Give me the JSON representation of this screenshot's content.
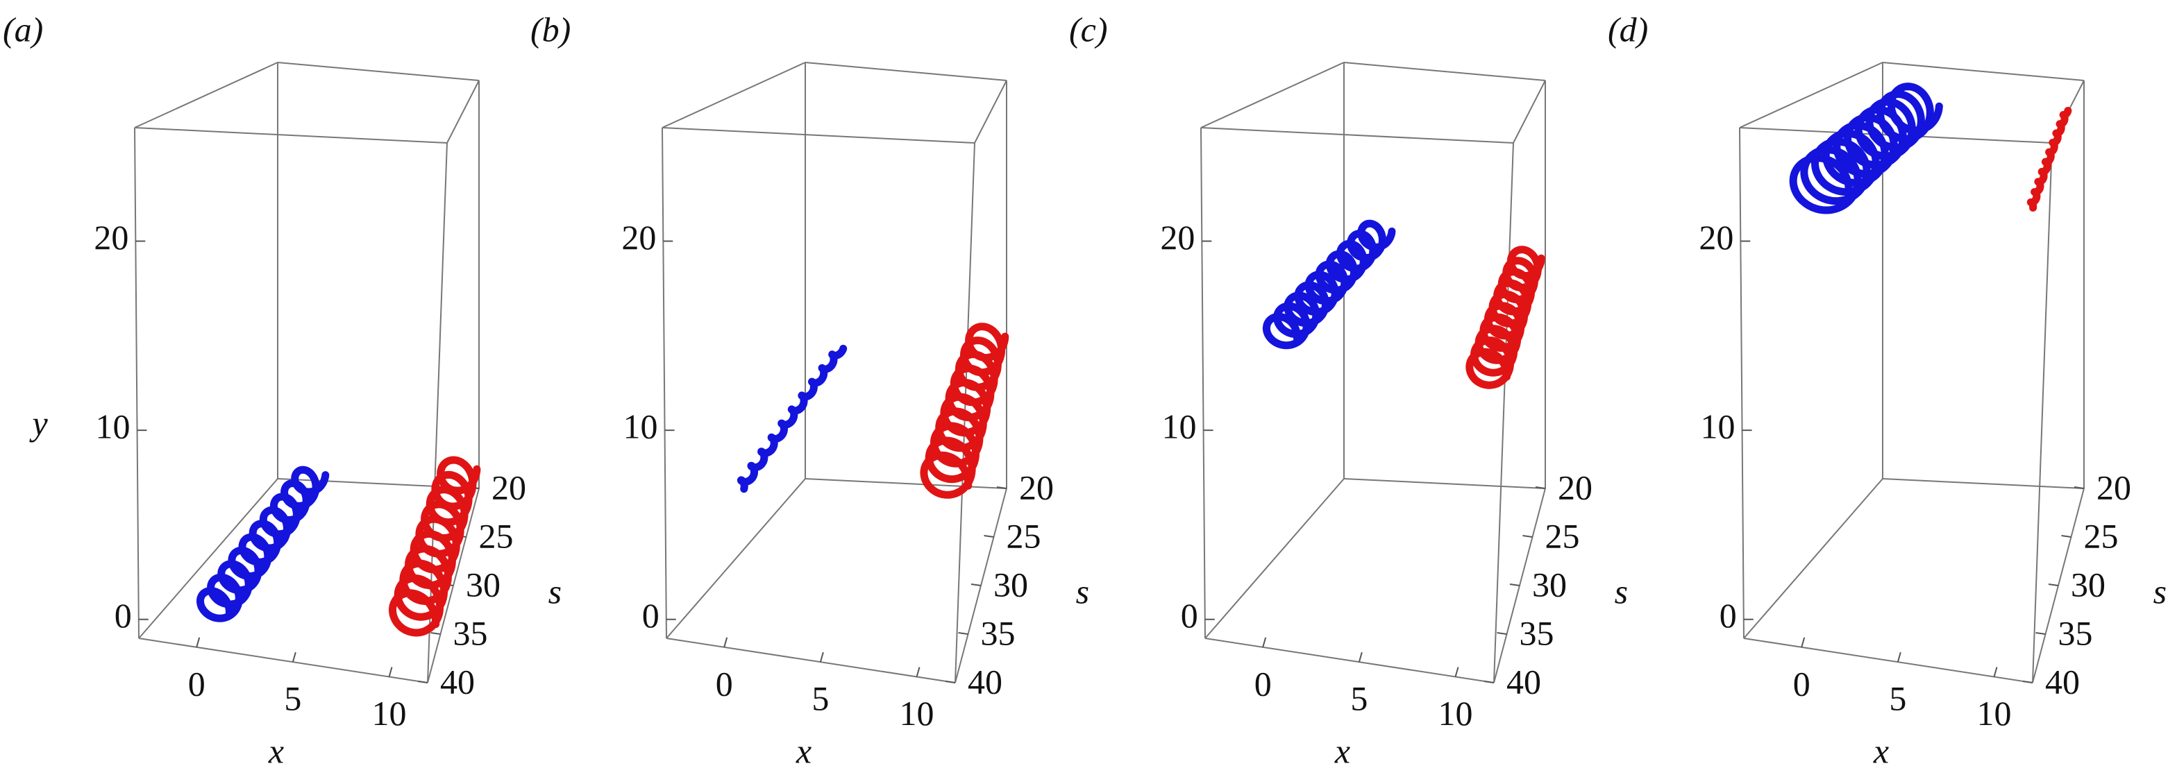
{
  "chart_data": [
    {
      "type": "helix3d",
      "label": "(a)",
      "xlabel": "x",
      "ylabel": "y",
      "slabel": "s",
      "xlim": [
        -3,
        12
      ],
      "ylim": [
        -1,
        26
      ],
      "slim": [
        20,
        40
      ],
      "xticks": [
        0,
        5,
        10
      ],
      "yticks": [
        0,
        10,
        20
      ],
      "sticks": [
        20,
        25,
        30,
        35,
        40
      ],
      "series": [
        {
          "color": "#1414dc",
          "x": [
            0.5,
            0.5
          ],
          "y": [
            0.5,
            0.5
          ],
          "s": [
            39,
            22
          ],
          "radius": 0.9,
          "turns": 10
        },
        {
          "color": "#e01414",
          "x": [
            11,
            11
          ],
          "y": [
            1.5,
            1.5
          ],
          "s": [
            39,
            22
          ],
          "radius": 1.2,
          "turns": 10
        }
      ]
    },
    {
      "type": "helix3d",
      "label": "(b)",
      "xlabel": "x",
      "slabel": "s",
      "xlim": [
        -3,
        12
      ],
      "ylim": [
        -1,
        26
      ],
      "slim": [
        20,
        40
      ],
      "xticks": [
        0,
        5,
        10
      ],
      "yticks": [
        0,
        10,
        20
      ],
      "sticks": [
        20,
        25,
        30,
        35,
        40
      ],
      "series": [
        {
          "color": "#1414dc",
          "x": [
            0.5,
            0.5
          ],
          "y": [
            7,
            8.5
          ],
          "s": [
            39,
            22
          ],
          "radius": 0.2,
          "turns": 10
        },
        {
          "color": "#e01414",
          "x": [
            11,
            11
          ],
          "y": [
            8.5,
            10
          ],
          "s": [
            39,
            22
          ],
          "radius": 1.2,
          "turns": 10
        }
      ]
    },
    {
      "type": "helix3d",
      "label": "(c)",
      "xlabel": "x",
      "slabel": "s",
      "xlim": [
        -3,
        12
      ],
      "ylim": [
        -1,
        26
      ],
      "slim": [
        20,
        40
      ],
      "xticks": [
        0,
        5,
        10
      ],
      "yticks": [
        0,
        10,
        20
      ],
      "sticks": [
        20,
        25,
        30,
        35,
        40
      ],
      "series": [
        {
          "color": "#1414dc",
          "x": [
            0.5,
            0.5
          ],
          "y": [
            15,
            16
          ],
          "s": [
            39,
            22
          ],
          "radius": 0.9,
          "turns": 10
        },
        {
          "color": "#e01414",
          "x": [
            11,
            11
          ],
          "y": [
            14,
            15
          ],
          "s": [
            39,
            22
          ],
          "radius": 1.0,
          "turns": 10
        }
      ]
    },
    {
      "type": "helix3d",
      "label": "(d)",
      "xlabel": "x",
      "slabel": "s",
      "xlim": [
        -3,
        12
      ],
      "ylim": [
        -1,
        26
      ],
      "slim": [
        20,
        40
      ],
      "xticks": [
        0,
        5,
        10
      ],
      "yticks": [
        0,
        10,
        20
      ],
      "sticks": [
        20,
        25,
        30,
        35,
        40
      ],
      "series": [
        {
          "color": "#1414dc",
          "x": [
            0.5,
            0.5
          ],
          "y": [
            22.8,
            24
          ],
          "s": [
            39,
            22
          ],
          "radius": 1.5,
          "turns": 10
        },
        {
          "color": "#e01414",
          "x": [
            11,
            11
          ],
          "y": [
            22.5,
            24.4
          ],
          "s": [
            39,
            22
          ],
          "radius": 0.1,
          "turns": 10
        }
      ]
    }
  ]
}
